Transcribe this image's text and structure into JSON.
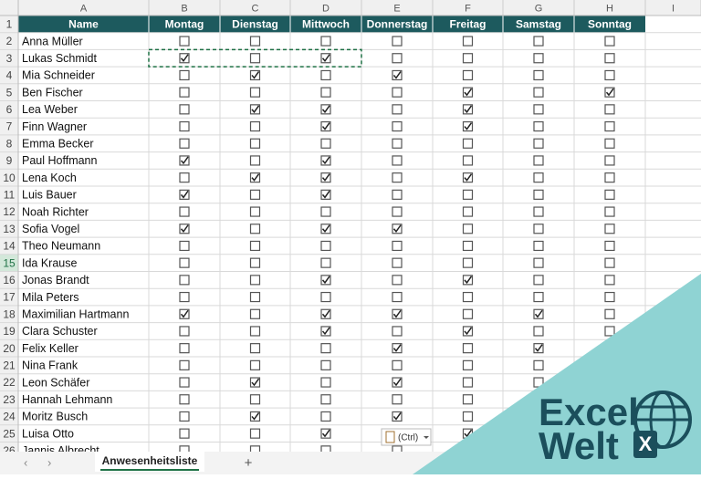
{
  "sheet": {
    "column_letters": [
      "A",
      "B",
      "C",
      "D",
      "E",
      "F",
      "G",
      "H",
      "I"
    ],
    "header_row_number": 1,
    "headers": [
      "Name",
      "Montag",
      "Dienstag",
      "Mittwoch",
      "Donnerstag",
      "Freitag",
      "Samstag",
      "Sonntag"
    ],
    "rows": [
      {
        "number": 2,
        "name": "Anna Müller",
        "checks": [
          false,
          false,
          false,
          false,
          false,
          false,
          false
        ]
      },
      {
        "number": 3,
        "name": "Lukas Schmidt",
        "checks": [
          true,
          false,
          true,
          false,
          false,
          false,
          false
        ]
      },
      {
        "number": 4,
        "name": "Mia Schneider",
        "checks": [
          false,
          true,
          false,
          true,
          false,
          false,
          false
        ]
      },
      {
        "number": 5,
        "name": "Ben Fischer",
        "checks": [
          false,
          false,
          false,
          false,
          true,
          false,
          true
        ]
      },
      {
        "number": 6,
        "name": "Lea Weber",
        "checks": [
          false,
          true,
          true,
          false,
          true,
          false,
          false
        ]
      },
      {
        "number": 7,
        "name": "Finn Wagner",
        "checks": [
          false,
          false,
          true,
          false,
          true,
          false,
          false
        ]
      },
      {
        "number": 8,
        "name": "Emma Becker",
        "checks": [
          false,
          false,
          false,
          false,
          false,
          false,
          false
        ]
      },
      {
        "number": 9,
        "name": "Paul Hoffmann",
        "checks": [
          true,
          false,
          true,
          false,
          false,
          false,
          false
        ]
      },
      {
        "number": 10,
        "name": "Lena Koch",
        "checks": [
          false,
          true,
          true,
          false,
          true,
          false,
          false
        ]
      },
      {
        "number": 11,
        "name": "Luis Bauer",
        "checks": [
          true,
          false,
          true,
          false,
          false,
          false,
          false
        ]
      },
      {
        "number": 12,
        "name": "Noah Richter",
        "checks": [
          false,
          false,
          false,
          false,
          false,
          false,
          false
        ]
      },
      {
        "number": 13,
        "name": "Sofia Vogel",
        "checks": [
          true,
          false,
          true,
          true,
          false,
          false,
          false
        ]
      },
      {
        "number": 14,
        "name": "Theo Neumann",
        "checks": [
          false,
          false,
          false,
          false,
          false,
          false,
          false
        ]
      },
      {
        "number": 15,
        "name": "Ida Krause",
        "checks": [
          false,
          false,
          false,
          false,
          false,
          false,
          false
        ]
      },
      {
        "number": 16,
        "name": "Jonas Brandt",
        "checks": [
          false,
          false,
          true,
          false,
          true,
          false,
          false
        ]
      },
      {
        "number": 17,
        "name": "Mila Peters",
        "checks": [
          false,
          false,
          false,
          false,
          false,
          false,
          false
        ]
      },
      {
        "number": 18,
        "name": "Maximilian Hartmann",
        "checks": [
          true,
          false,
          true,
          true,
          false,
          true,
          false
        ]
      },
      {
        "number": 19,
        "name": "Clara Schuster",
        "checks": [
          false,
          false,
          true,
          false,
          true,
          false,
          false
        ]
      },
      {
        "number": 20,
        "name": "Felix Keller",
        "checks": [
          false,
          false,
          false,
          true,
          false,
          true,
          false
        ]
      },
      {
        "number": 21,
        "name": "Nina Frank",
        "checks": [
          false,
          false,
          false,
          false,
          false,
          false,
          false
        ]
      },
      {
        "number": 22,
        "name": "Leon Schäfer",
        "checks": [
          false,
          true,
          false,
          true,
          false,
          false,
          false
        ]
      },
      {
        "number": 23,
        "name": "Hannah Lehmann",
        "checks": [
          false,
          false,
          false,
          false,
          false,
          false,
          false
        ]
      },
      {
        "number": 24,
        "name": "Moritz Busch",
        "checks": [
          false,
          true,
          false,
          true,
          false,
          false,
          false
        ]
      },
      {
        "number": 25,
        "name": "Luisa Otto",
        "checks": [
          false,
          false,
          true,
          false,
          true,
          false,
          false
        ]
      },
      {
        "number": 26,
        "name": "Jannis Albrecht",
        "checks": [
          false,
          false,
          false,
          false,
          false,
          false,
          false
        ]
      }
    ],
    "active_row": 15,
    "sheet_tab": "Anwesenheitsliste",
    "add_sheet": "+",
    "paste_options": "(Ctrl)"
  },
  "watermark": {
    "line1": "Excel",
    "line2": "Welt",
    "badge": "X"
  }
}
